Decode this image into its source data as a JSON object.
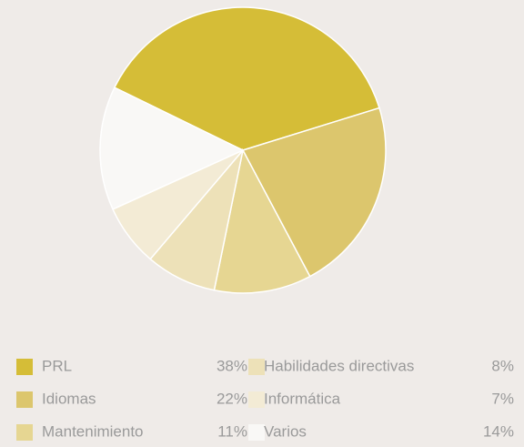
{
  "chart_data": {
    "type": "pie",
    "categories": [
      "PRL",
      "Idiomas",
      "Mantenimiento",
      "Habilidades directivas",
      "Informática",
      "Varios"
    ],
    "values": [
      38,
      22,
      11,
      8,
      7,
      14
    ],
    "value_labels": [
      "38%",
      "22%",
      "11%",
      "8%",
      "7%",
      "14%"
    ],
    "colors": [
      "#d5bd37",
      "#dcc66d",
      "#e6d692",
      "#ede1b8",
      "#f3ebd5",
      "#f9f8f6"
    ]
  }
}
